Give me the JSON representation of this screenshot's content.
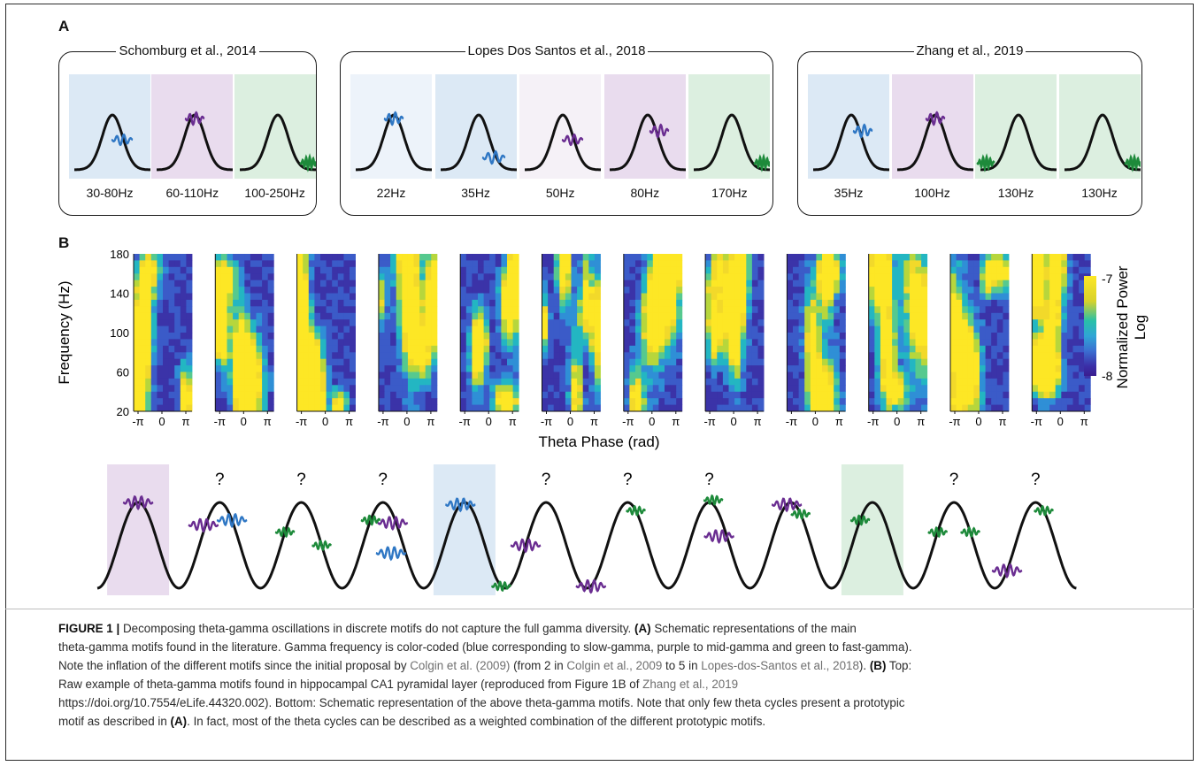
{
  "panel_a": {
    "label": "A",
    "groups": [
      {
        "title": "Schomburg et al., 2014",
        "motifs": [
          {
            "freq": "30-80Hz",
            "bg": "#dce9f5",
            "color": "#2f77c4",
            "pos": "right-slope"
          },
          {
            "freq": "60-110Hz",
            "bg": "#e9dcee",
            "color": "#6a2d91",
            "pos": "peak"
          },
          {
            "freq": "100-250Hz",
            "bg": "#dcefe0",
            "color": "#1d8a3a",
            "pos": "right-trough"
          }
        ]
      },
      {
        "title": "Lopes Dos Santos et al., 2018",
        "motifs": [
          {
            "freq": "22Hz",
            "bg": "#edf3fa",
            "color": "#2f77c4",
            "pos": "peak"
          },
          {
            "freq": "35Hz",
            "bg": "#dce9f5",
            "color": "#2f77c4",
            "pos": "right-low"
          },
          {
            "freq": "50Hz",
            "bg": "#f5f1f7",
            "color": "#6a2d91",
            "pos": "right-slope"
          },
          {
            "freq": "80Hz",
            "bg": "#e9dcee",
            "color": "#6a2d91",
            "pos": "right-high"
          },
          {
            "freq": "170Hz",
            "bg": "#dcefe0",
            "color": "#1d8a3a",
            "pos": "right-trough"
          }
        ]
      },
      {
        "title": "Zhang et al., 2019",
        "motifs": [
          {
            "freq": "35Hz",
            "bg": "#dce9f5",
            "color": "#2f77c4",
            "pos": "right-high"
          },
          {
            "freq": "100Hz",
            "bg": "#e9dcee",
            "color": "#6a2d91",
            "pos": "peak"
          },
          {
            "freq": "130Hz",
            "bg": "#dcefe0",
            "color": "#1d8a3a",
            "pos": "left-trough"
          },
          {
            "freq": "130Hz",
            "bg": "#dcefe0",
            "color": "#1d8a3a",
            "pos": "right-trough"
          }
        ]
      }
    ]
  },
  "panel_b": {
    "label": "B",
    "ylabel": "Frequency (Hz)",
    "yticks": [
      "180",
      "140",
      "100",
      "60",
      "20"
    ],
    "xticks": [
      "-π",
      "0",
      "π"
    ],
    "xlabel": "Theta Phase (rad)",
    "colorbar_label_line1": "Normalized Power",
    "colorbar_label_line2": "Log",
    "colorbar_max": "-7",
    "colorbar_min": "-8",
    "num_heatmaps": 12,
    "question_mark": "?",
    "cycles": [
      {
        "highlight": "#e9dcee",
        "question": false,
        "bursts": [
          {
            "color": "#6a2d91",
            "phase": 0.5,
            "dy": 0
          }
        ]
      },
      {
        "highlight": null,
        "question": true,
        "bursts": [
          {
            "color": "#6a2d91",
            "phase": 0.3,
            "dy": -8
          },
          {
            "color": "#2f77c4",
            "phase": 0.65,
            "dy": 0
          }
        ]
      },
      {
        "highlight": null,
        "question": true,
        "bursts": [
          {
            "color": "#1d8a3a",
            "phase": 0.3,
            "dy": 0
          },
          {
            "color": "#1d8a3a",
            "phase": 0.75,
            "dy": 0
          }
        ]
      },
      {
        "highlight": null,
        "question": true,
        "bursts": [
          {
            "color": "#1d8a3a",
            "phase": 0.35,
            "dy": 0
          },
          {
            "color": "#6a2d91",
            "phase": 0.62,
            "dy": 10
          },
          {
            "color": "#2f77c4",
            "phase": 0.6,
            "dy": 48
          }
        ]
      },
      {
        "highlight": "#dce9f5",
        "question": false,
        "bursts": [
          {
            "color": "#2f77c4",
            "phase": 0.45,
            "dy": 0
          },
          {
            "color": "#1d8a3a",
            "phase": 0.95,
            "dy": 0
          }
        ]
      },
      {
        "highlight": null,
        "question": true,
        "bursts": [
          {
            "color": "#6a2d91",
            "phase": 0.25,
            "dy": 0
          }
        ]
      },
      {
        "highlight": null,
        "question": true,
        "bursts": [
          {
            "color": "#1d8a3a",
            "phase": 0.6,
            "dy": 0
          },
          {
            "color": "#6a2d91",
            "phase": 0.05,
            "dy": 0
          }
        ]
      },
      {
        "highlight": null,
        "question": true,
        "bursts": [
          {
            "color": "#1d8a3a",
            "phase": 0.55,
            "dy": -5
          },
          {
            "color": "#6a2d91",
            "phase": 0.62,
            "dy": 25
          }
        ]
      },
      {
        "highlight": null,
        "question": false,
        "bursts": [
          {
            "color": "#6a2d91",
            "phase": 0.45,
            "dy": 0
          },
          {
            "color": "#1d8a3a",
            "phase": 0.62,
            "dy": 0
          }
        ]
      },
      {
        "highlight": "#dcefe0",
        "question": false,
        "bursts": [
          {
            "color": "#1d8a3a",
            "phase": 0.35,
            "dy": 0
          }
        ]
      },
      {
        "highlight": null,
        "question": true,
        "bursts": [
          {
            "color": "#1d8a3a",
            "phase": 0.3,
            "dy": 0
          },
          {
            "color": "#1d8a3a",
            "phase": 0.7,
            "dy": 0
          }
        ]
      },
      {
        "highlight": null,
        "question": true,
        "bursts": [
          {
            "color": "#6a2d91",
            "phase": 0.15,
            "dy": 0
          },
          {
            "color": "#1d8a3a",
            "phase": 0.6,
            "dy": 0
          }
        ]
      }
    ]
  },
  "caption": {
    "figure_label": "FIGURE 1 |",
    "l1": " Decomposing theta-gamma oscillations in discrete motifs do not capture the full gamma diversity. ",
    "l1_a": "(A)",
    "l1_b": " Schematic representations of the main",
    "l2": "theta-gamma motifs found in the literature. Gamma frequency is color-coded (blue corresponding to slow-gamma, purple to mid-gamma and green to fast-gamma).",
    "l3_a": "Note the inflation of the different motifs since the initial proposal by ",
    "l3_ref1": "Colgin et al. (2009)",
    "l3_b": " (from 2 in ",
    "l3_ref2": "Colgin et al., 2009",
    "l3_c": " to 5 in ",
    "l3_ref3": "Lopes-dos-Santos et al., 2018",
    "l3_d": "). ",
    "l3_e": "(B)",
    "l3_f": " Top:",
    "l4_a": "Raw example of theta-gamma motifs found in hippocampal CA1 pyramidal layer (reproduced from Figure 1B of ",
    "l4_ref": "Zhang et al., 2019",
    "l5": "https://doi.org/10.7554/eLife.44320.002). Bottom: Schematic representation of the above theta-gamma motifs. Note that only few theta cycles present a prototypic",
    "l6_a": "motif as described in ",
    "l6_b": "(A)",
    "l6_c": ". In fact, most of the theta cycles can be described as a weighted combination of the different prototypic motifs."
  }
}
